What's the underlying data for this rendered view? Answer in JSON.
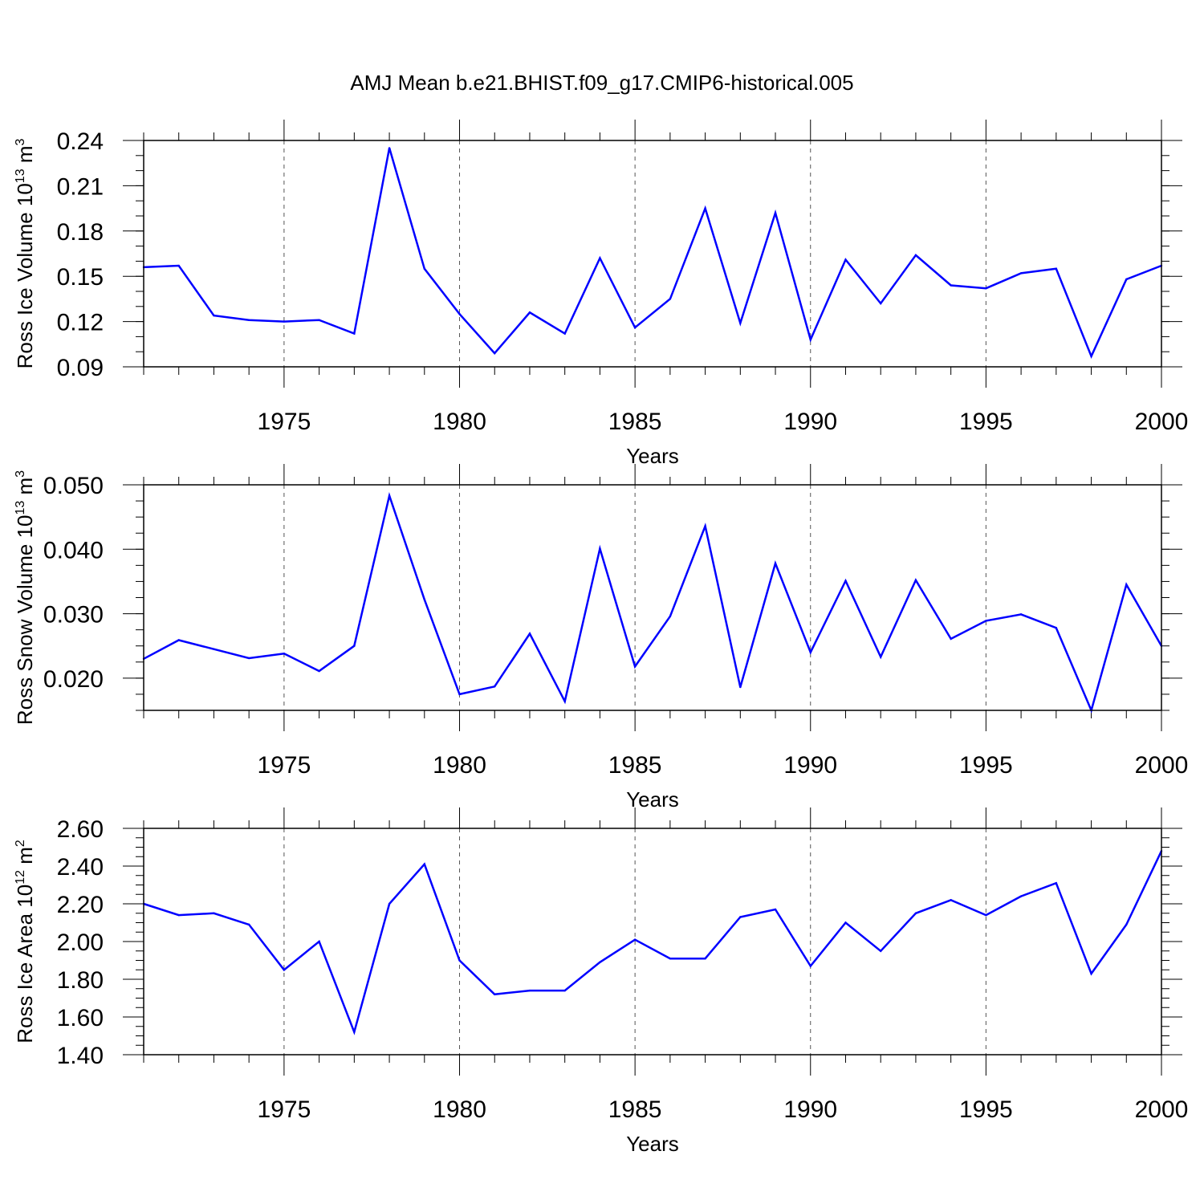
{
  "figure": {
    "title": "AMJ Mean b.e21.BHIST.f09_g17.CMIP6-historical.005",
    "line_color": "#0000ff"
  },
  "chart_data": [
    {
      "type": "line",
      "xlabel": "Years",
      "ylabel_parts": {
        "text": "Ross Ice Volume 10",
        "exp": "13",
        "unit": " m",
        "unit_exp": "3"
      },
      "xlim": [
        1971,
        2000
      ],
      "ylim": [
        0.09,
        0.24
      ],
      "yticks": [
        0.09,
        0.12,
        0.15,
        0.18,
        0.21,
        0.24
      ],
      "ytick_labels": [
        "0.09",
        "0.12",
        "0.15",
        "0.18",
        "0.21",
        "0.24"
      ],
      "y_minor_step": 0.01,
      "xticks": [
        1975,
        1980,
        1985,
        1990,
        1995,
        2000
      ],
      "xtick_labels": [
        "1975",
        "1980",
        "1985",
        "1990",
        "1995",
        "2000"
      ],
      "grid": "vertical-dashed",
      "series": [
        {
          "name": "Ross Ice Volume",
          "x": [
            1971,
            1972,
            1973,
            1974,
            1975,
            1976,
            1977,
            1978,
            1979,
            1980,
            1981,
            1982,
            1983,
            1984,
            1985,
            1986,
            1987,
            1988,
            1989,
            1990,
            1991,
            1992,
            1993,
            1994,
            1995,
            1996,
            1997,
            1998,
            1999,
            2000
          ],
          "values": [
            0.156,
            0.157,
            0.124,
            0.121,
            0.12,
            0.121,
            0.112,
            0.235,
            0.155,
            0.125,
            0.099,
            0.126,
            0.112,
            0.162,
            0.116,
            0.135,
            0.195,
            0.119,
            0.192,
            0.108,
            0.161,
            0.132,
            0.164,
            0.144,
            0.142,
            0.152,
            0.155,
            0.097,
            0.148,
            0.157
          ]
        }
      ]
    },
    {
      "type": "line",
      "xlabel": "Years",
      "ylabel_parts": {
        "text": "Ross Snow Volume 10",
        "exp": "13",
        "unit": " m",
        "unit_exp": "3"
      },
      "xlim": [
        1971,
        2000
      ],
      "ylim": [
        0.015,
        0.05
      ],
      "yticks": [
        0.02,
        0.03,
        0.04,
        0.05
      ],
      "ytick_labels": [
        "0.020",
        "0.030",
        "0.040",
        "0.050"
      ],
      "y_minor_step": 0.0025,
      "xticks": [
        1975,
        1980,
        1985,
        1990,
        1995,
        2000
      ],
      "xtick_labels": [
        "1975",
        "1980",
        "1985",
        "1990",
        "1995",
        "2000"
      ],
      "grid": "vertical-dashed",
      "series": [
        {
          "name": "Ross Snow Volume",
          "x": [
            1971,
            1972,
            1973,
            1974,
            1975,
            1976,
            1977,
            1978,
            1979,
            1980,
            1981,
            1982,
            1983,
            1984,
            1985,
            1986,
            1987,
            1988,
            1989,
            1990,
            1991,
            1992,
            1993,
            1994,
            1995,
            1996,
            1997,
            1998,
            1999,
            2000
          ],
          "values": [
            0.023,
            0.0259,
            0.0245,
            0.0231,
            0.0238,
            0.0211,
            0.025,
            0.0483,
            0.0322,
            0.0175,
            0.0187,
            0.0269,
            0.0164,
            0.0401,
            0.0218,
            0.0296,
            0.0436,
            0.0186,
            0.0378,
            0.024,
            0.0351,
            0.0233,
            0.0352,
            0.0261,
            0.0289,
            0.0299,
            0.0278,
            0.015,
            0.0345,
            0.025
          ]
        }
      ]
    },
    {
      "type": "line",
      "xlabel": "Years",
      "ylabel_parts": {
        "text": "Ross Ice Area 10",
        "exp": "12",
        "unit": " m",
        "unit_exp": "2"
      },
      "xlim": [
        1971,
        2000
      ],
      "ylim": [
        1.4,
        2.6
      ],
      "yticks": [
        1.4,
        1.6,
        1.8,
        2.0,
        2.2,
        2.4,
        2.6
      ],
      "ytick_labels": [
        "1.40",
        "1.60",
        "1.80",
        "2.00",
        "2.20",
        "2.40",
        "2.60"
      ],
      "y_minor_step": 0.05,
      "xticks": [
        1975,
        1980,
        1985,
        1990,
        1995,
        2000
      ],
      "xtick_labels": [
        "1975",
        "1980",
        "1985",
        "1990",
        "1995",
        "2000"
      ],
      "grid": "vertical-dashed",
      "series": [
        {
          "name": "Ross Ice Area",
          "x": [
            1971,
            1972,
            1973,
            1974,
            1975,
            1976,
            1977,
            1978,
            1979,
            1980,
            1981,
            1982,
            1983,
            1984,
            1985,
            1986,
            1987,
            1988,
            1989,
            1990,
            1991,
            1992,
            1993,
            1994,
            1995,
            1996,
            1997,
            1998,
            1999,
            2000
          ],
          "values": [
            2.2,
            2.14,
            2.15,
            2.09,
            1.85,
            2.0,
            1.52,
            2.2,
            2.41,
            1.9,
            1.72,
            1.74,
            1.74,
            1.89,
            2.01,
            1.91,
            1.91,
            2.13,
            2.17,
            1.87,
            2.1,
            1.95,
            2.15,
            2.22,
            2.14,
            2.24,
            2.31,
            1.83,
            2.09,
            2.48
          ]
        }
      ]
    }
  ]
}
